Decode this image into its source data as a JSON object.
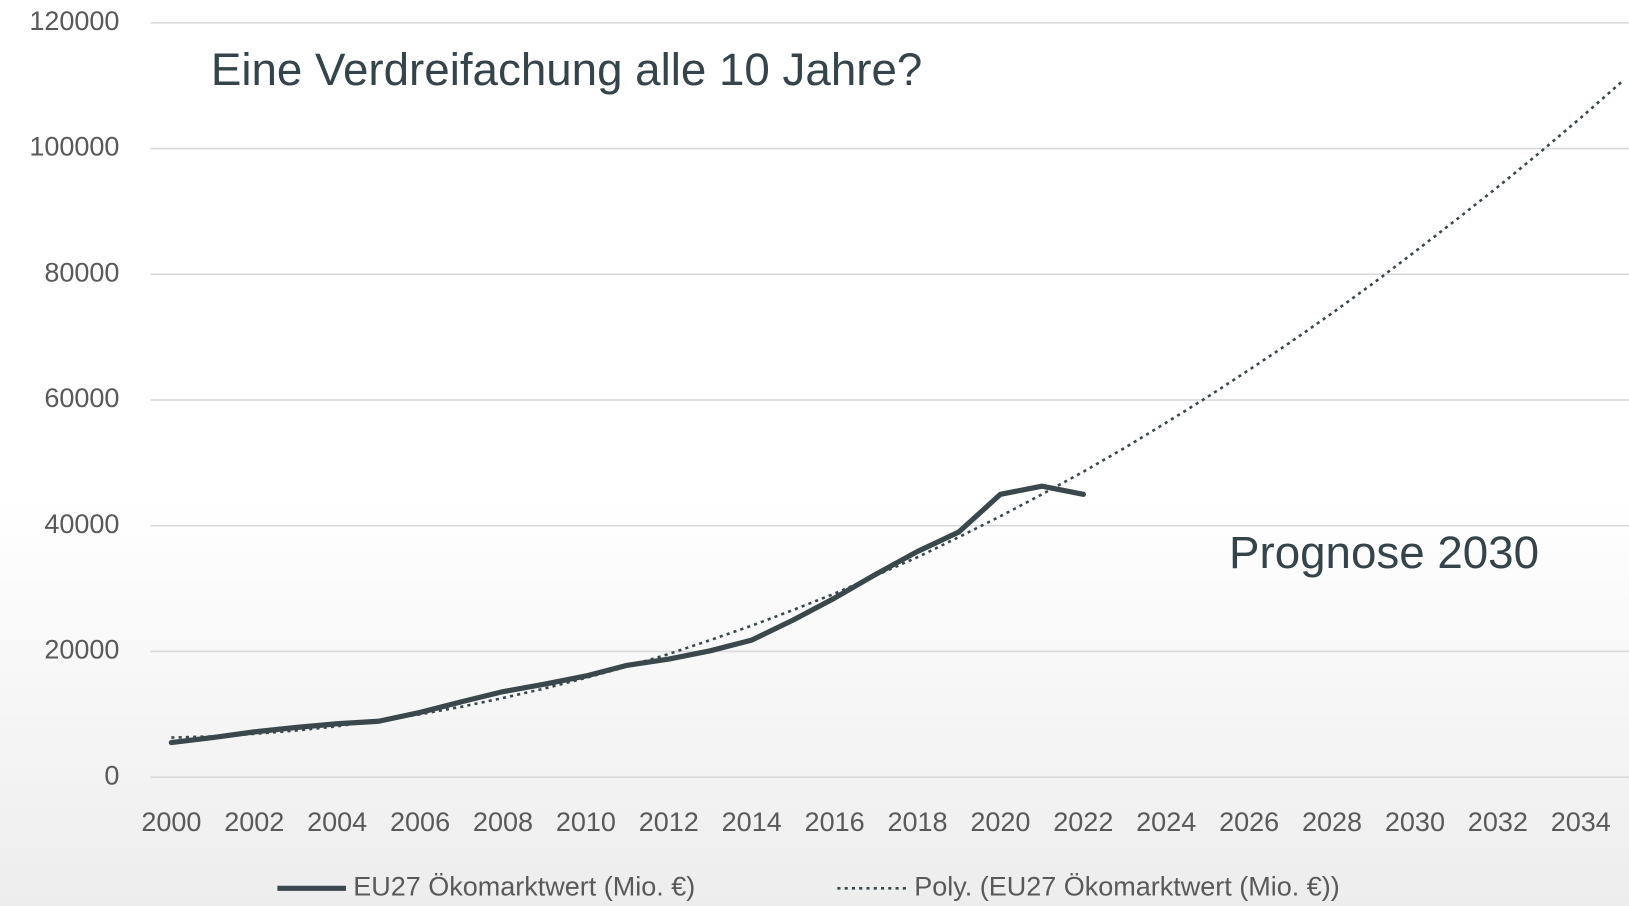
{
  "chart_data": {
    "type": "line",
    "annotations": [
      "Eine Verdreifachung alle 10 Jahre?",
      "Prognose 2030"
    ],
    "categories": [
      "2000",
      null,
      "2002",
      null,
      "2004",
      null,
      "2006",
      null,
      "2008",
      null,
      "2010",
      null,
      "2012",
      null,
      "2014",
      null,
      "2016",
      null,
      "2018",
      null,
      "2020",
      null,
      "2022",
      null,
      "2024",
      null,
      "2026",
      null,
      "2028",
      null,
      "2030",
      null,
      "2032",
      null,
      "2034",
      null
    ],
    "series": [
      {
        "name": "EU27 Ökomarktwert (Mio. €)",
        "color": "#3a484d",
        "line_style": "solid",
        "values": [
          5500,
          6300,
          7200,
          7900,
          8500,
          8900,
          10300,
          12000,
          13600,
          14800,
          16100,
          17800,
          18800,
          20100,
          21800,
          25000,
          28500,
          32300,
          35900,
          39000,
          45000,
          46300,
          45000,
          null,
          null,
          null,
          null,
          null,
          null,
          null,
          null,
          null,
          null,
          null,
          null,
          null
        ]
      },
      {
        "name": "Poly. (EU27 Ökomarktwert (Mio. €))",
        "color": "#3a484d",
        "line_style": "dotted",
        "values": [
          6300,
          6500,
          6900,
          7400,
          8100,
          9000,
          10000,
          11200,
          12600,
          14100,
          15800,
          17600,
          19600,
          21800,
          24100,
          26600,
          29200,
          32100,
          35000,
          38200,
          41500,
          45000,
          48600,
          52400,
          56400,
          60500,
          64800,
          69200,
          73800,
          78600,
          83600,
          88700,
          93900,
          99300,
          104900,
          110700
        ]
      }
    ],
    "ylim": [
      0,
      120000
    ],
    "yticks": [
      0,
      20000,
      40000,
      60000,
      80000,
      100000,
      120000
    ],
    "grid": true,
    "legend": "bottom"
  }
}
